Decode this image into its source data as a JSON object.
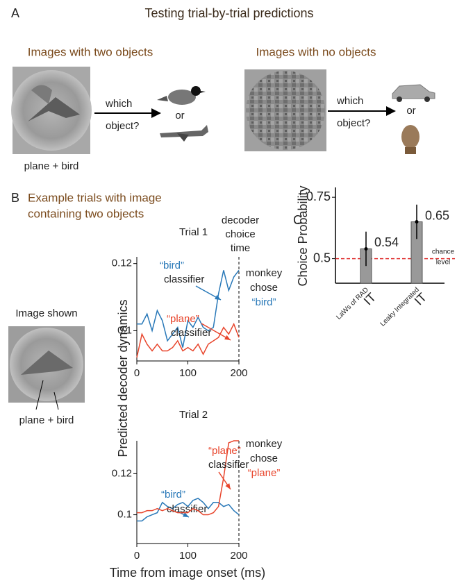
{
  "panel_a": {
    "label": "A",
    "title": "Testing trial-by-trial predictions",
    "left": {
      "heading": "Images with two objects",
      "question": [
        "which",
        "object?"
      ],
      "or": "or",
      "caption": "plane + bird"
    },
    "right": {
      "heading": "Images with no objects",
      "question": [
        "which",
        "object?"
      ],
      "or": "or"
    }
  },
  "panel_b": {
    "label": "B",
    "title": [
      "Example trials with image",
      "containing two objects"
    ],
    "image_title": "Image shown",
    "image_caption": "plane + bird",
    "decoder_note": [
      "decoder",
      "choice",
      "time"
    ],
    "y_label": "Predicted decoder dynamics",
    "x_label": "Time from image onset (ms)"
  },
  "chart_data": [
    {
      "type": "line",
      "title": "Trial 1",
      "x": [
        0,
        10,
        20,
        30,
        40,
        50,
        60,
        70,
        80,
        90,
        100,
        110,
        120,
        130,
        140,
        150,
        160,
        170,
        180,
        190,
        200
      ],
      "series": [
        {
          "name": "“bird”",
          "label": "classifier",
          "color": "#2878b8",
          "values": [
            0.102,
            0.102,
            0.105,
            0.1,
            0.106,
            0.103,
            0.097,
            0.099,
            0.101,
            0.095,
            0.103,
            0.101,
            0.104,
            0.101,
            0.1,
            0.101,
            0.111,
            0.118,
            0.112,
            0.116,
            0.118
          ]
        },
        {
          "name": "“plane”",
          "label": "classifier",
          "color": "#e8452c",
          "values": [
            0.092,
            0.099,
            0.096,
            0.094,
            0.096,
            0.094,
            0.094,
            0.095,
            0.097,
            0.094,
            0.095,
            0.094,
            0.096,
            0.093,
            0.096,
            0.097,
            0.098,
            0.101,
            0.099,
            0.102,
            0.098
          ]
        }
      ],
      "choice_note": [
        "monkey",
        "chose"
      ],
      "chosen_series": 0,
      "decision_time": 200,
      "xlim": [
        0,
        200
      ],
      "xticks": [
        0,
        100,
        200
      ],
      "ylim": [
        0.091,
        0.122
      ],
      "yticks": [
        0.1,
        0.12
      ]
    },
    {
      "type": "line",
      "title": "Trial 2",
      "x": [
        0,
        10,
        20,
        30,
        40,
        50,
        60,
        70,
        80,
        90,
        100,
        110,
        120,
        130,
        140,
        150,
        160,
        170,
        180,
        190,
        200
      ],
      "series": [
        {
          "name": "“bird”",
          "label": "classifier",
          "color": "#2878b8",
          "values": [
            0.097,
            0.097,
            0.099,
            0.1,
            0.101,
            0.106,
            0.104,
            0.103,
            0.105,
            0.106,
            0.104,
            0.107,
            0.108,
            0.106,
            0.103,
            0.106,
            0.106,
            0.104,
            0.105,
            0.102,
            0.1
          ]
        },
        {
          "name": "“plane”",
          "label": "classifier",
          "color": "#e8452c",
          "values": [
            0.101,
            0.101,
            0.102,
            0.102,
            0.103,
            0.102,
            0.103,
            0.102,
            0.101,
            0.101,
            0.101,
            0.103,
            0.102,
            0.1,
            0.1,
            0.101,
            0.104,
            0.118,
            0.135,
            0.136,
            0.136
          ]
        }
      ],
      "choice_note": [
        "monkey",
        "chose"
      ],
      "chosen_series": 1,
      "decision_time": 200,
      "xlim": [
        0,
        200
      ],
      "xticks": [
        0,
        100,
        200
      ],
      "ylim": [
        0.086,
        0.136
      ],
      "yticks": [
        0.1,
        0.12
      ]
    },
    {
      "type": "bar",
      "label": "C",
      "y_label": "Choice Probability",
      "categories": [
        "LaWs of RAD",
        "Leaky Integrated"
      ],
      "category_sublabels": [
        "IT",
        "IT"
      ],
      "values": [
        0.54,
        0.65
      ],
      "errors": [
        0.07,
        0.07
      ],
      "color": "#999999",
      "ylim": [
        0.4,
        0.79
      ],
      "yticks": [
        0.5,
        0.75
      ],
      "chance": {
        "value": 0.5,
        "label": [
          "chance",
          "level"
        ],
        "color": "#e03030"
      }
    }
  ]
}
